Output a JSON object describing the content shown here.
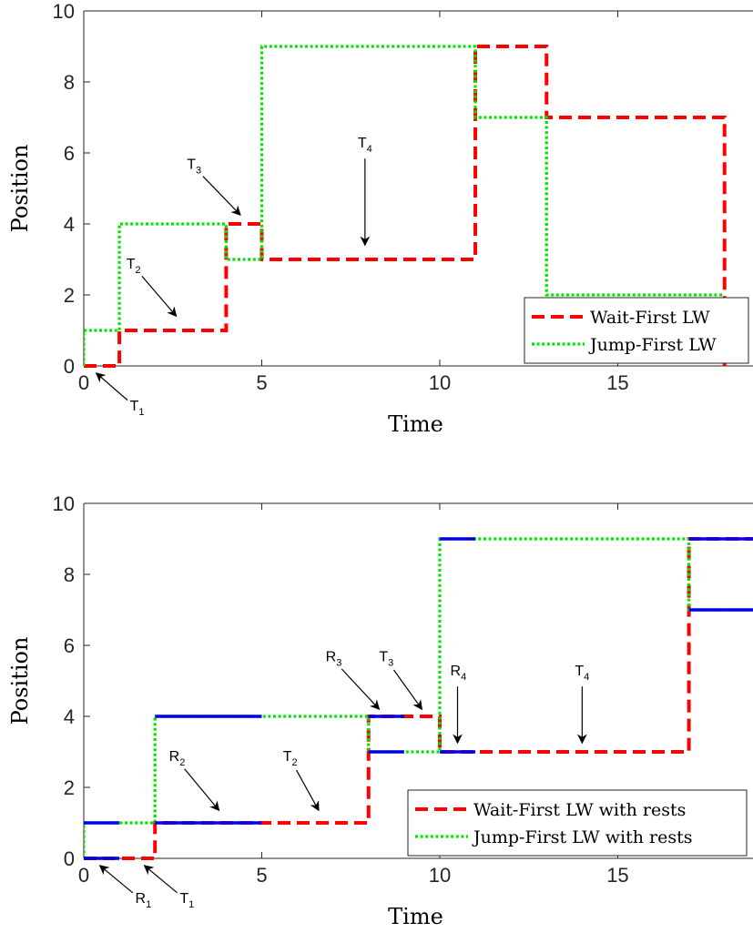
{
  "chart_data": [
    {
      "type": "line",
      "xlabel": "Time",
      "ylabel": "Position",
      "xlim": [
        0,
        18.8
      ],
      "ylim": [
        0,
        10
      ],
      "xticks": [
        "0",
        "5",
        "10",
        "15"
      ],
      "yticks": [
        "0",
        "2",
        "4",
        "6",
        "8",
        "10"
      ],
      "legend_position": "bottom-right",
      "series": [
        {
          "name": "Wait-First LW",
          "style": "dashed",
          "color": "#ff0000",
          "x": [
            0,
            1,
            1,
            4,
            4,
            5,
            5,
            11,
            11,
            13,
            13,
            18,
            18
          ],
          "y": [
            0,
            0,
            1,
            1,
            4,
            4,
            3,
            3,
            9,
            9,
            7,
            7,
            0
          ]
        },
        {
          "name": "Jump-First LW",
          "style": "dotted",
          "color": "#00e600",
          "x": [
            0,
            0,
            1,
            1,
            4,
            4,
            5,
            5,
            11,
            11,
            13,
            13,
            18
          ],
          "y": [
            0,
            1,
            1,
            4,
            4,
            3,
            3,
            9,
            9,
            7,
            7,
            2,
            2
          ]
        }
      ],
      "annotations": [
        {
          "label": "T",
          "sub": "1",
          "x": 1.5,
          "y": -1.2,
          "tx": 0.35,
          "ty": -0.2
        },
        {
          "label": "T",
          "sub": "2",
          "x": 1.4,
          "y": 2.8,
          "tx": 2.6,
          "ty": 1.4
        },
        {
          "label": "T",
          "sub": "3",
          "x": 3.1,
          "y": 5.6,
          "tx": 4.4,
          "ty": 4.25
        },
        {
          "label": "T",
          "sub": "4",
          "x": 7.9,
          "y": 6.2,
          "tx": 7.9,
          "ty": 3.4
        }
      ]
    },
    {
      "type": "line",
      "xlabel": "Time",
      "ylabel": "Position",
      "xlim": [
        0,
        18.8
      ],
      "ylim": [
        0,
        10
      ],
      "xticks": [
        "0",
        "5",
        "10",
        "15"
      ],
      "yticks": [
        "0",
        "2",
        "4",
        "6",
        "8",
        "10"
      ],
      "legend_position": "bottom-right",
      "series": [
        {
          "name": "Wait-First LW with rests",
          "style": "dashed",
          "color": "#ff0000",
          "x": [
            0,
            2,
            2,
            8,
            8,
            10,
            10,
            17,
            17,
            18.8
          ],
          "y": [
            0,
            0,
            1,
            1,
            4,
            4,
            3,
            3,
            9,
            9
          ]
        },
        {
          "name": "Jump-First LW with rests",
          "style": "dotted",
          "color": "#00e600",
          "x": [
            0,
            0,
            2,
            2,
            8,
            8,
            10,
            10,
            17,
            17,
            18.8
          ],
          "y": [
            0,
            1,
            1,
            4,
            4,
            3,
            3,
            9,
            9,
            7,
            7
          ]
        }
      ],
      "rest_segments": {
        "color": "#0000e6",
        "segments": [
          [
            0,
            1,
            0
          ],
          [
            0,
            1,
            1
          ],
          [
            2,
            5,
            1
          ],
          [
            2,
            5,
            4
          ],
          [
            8,
            9,
            3
          ],
          [
            8,
            9,
            4
          ],
          [
            10,
            11,
            3
          ],
          [
            10,
            11,
            9
          ],
          [
            17,
            18.8,
            7
          ],
          [
            17,
            18.8,
            9
          ]
        ]
      },
      "annotations": [
        {
          "label": "R",
          "sub": "1",
          "x": 1.65,
          "y": -1.2,
          "tx": 0.45,
          "ty": -0.2
        },
        {
          "label": "T",
          "sub": "1",
          "x": 2.9,
          "y": -1.2,
          "tx": 1.7,
          "ty": -0.2
        },
        {
          "label": "R",
          "sub": "2",
          "x": 2.6,
          "y": 2.8,
          "tx": 3.8,
          "ty": 1.35
        },
        {
          "label": "T",
          "sub": "2",
          "x": 5.8,
          "y": 2.8,
          "tx": 6.6,
          "ty": 1.35
        },
        {
          "label": "R",
          "sub": "3",
          "x": 7.0,
          "y": 5.6,
          "tx": 8.3,
          "ty": 4.2
        },
        {
          "label": "T",
          "sub": "3",
          "x": 8.5,
          "y": 5.6,
          "tx": 9.5,
          "ty": 4.2
        },
        {
          "label": "R",
          "sub": "4",
          "x": 10.5,
          "y": 5.2,
          "tx": 10.5,
          "ty": 3.25
        },
        {
          "label": "T",
          "sub": "4",
          "x": 14.0,
          "y": 5.2,
          "tx": 14.0,
          "ty": 3.25
        }
      ]
    }
  ]
}
